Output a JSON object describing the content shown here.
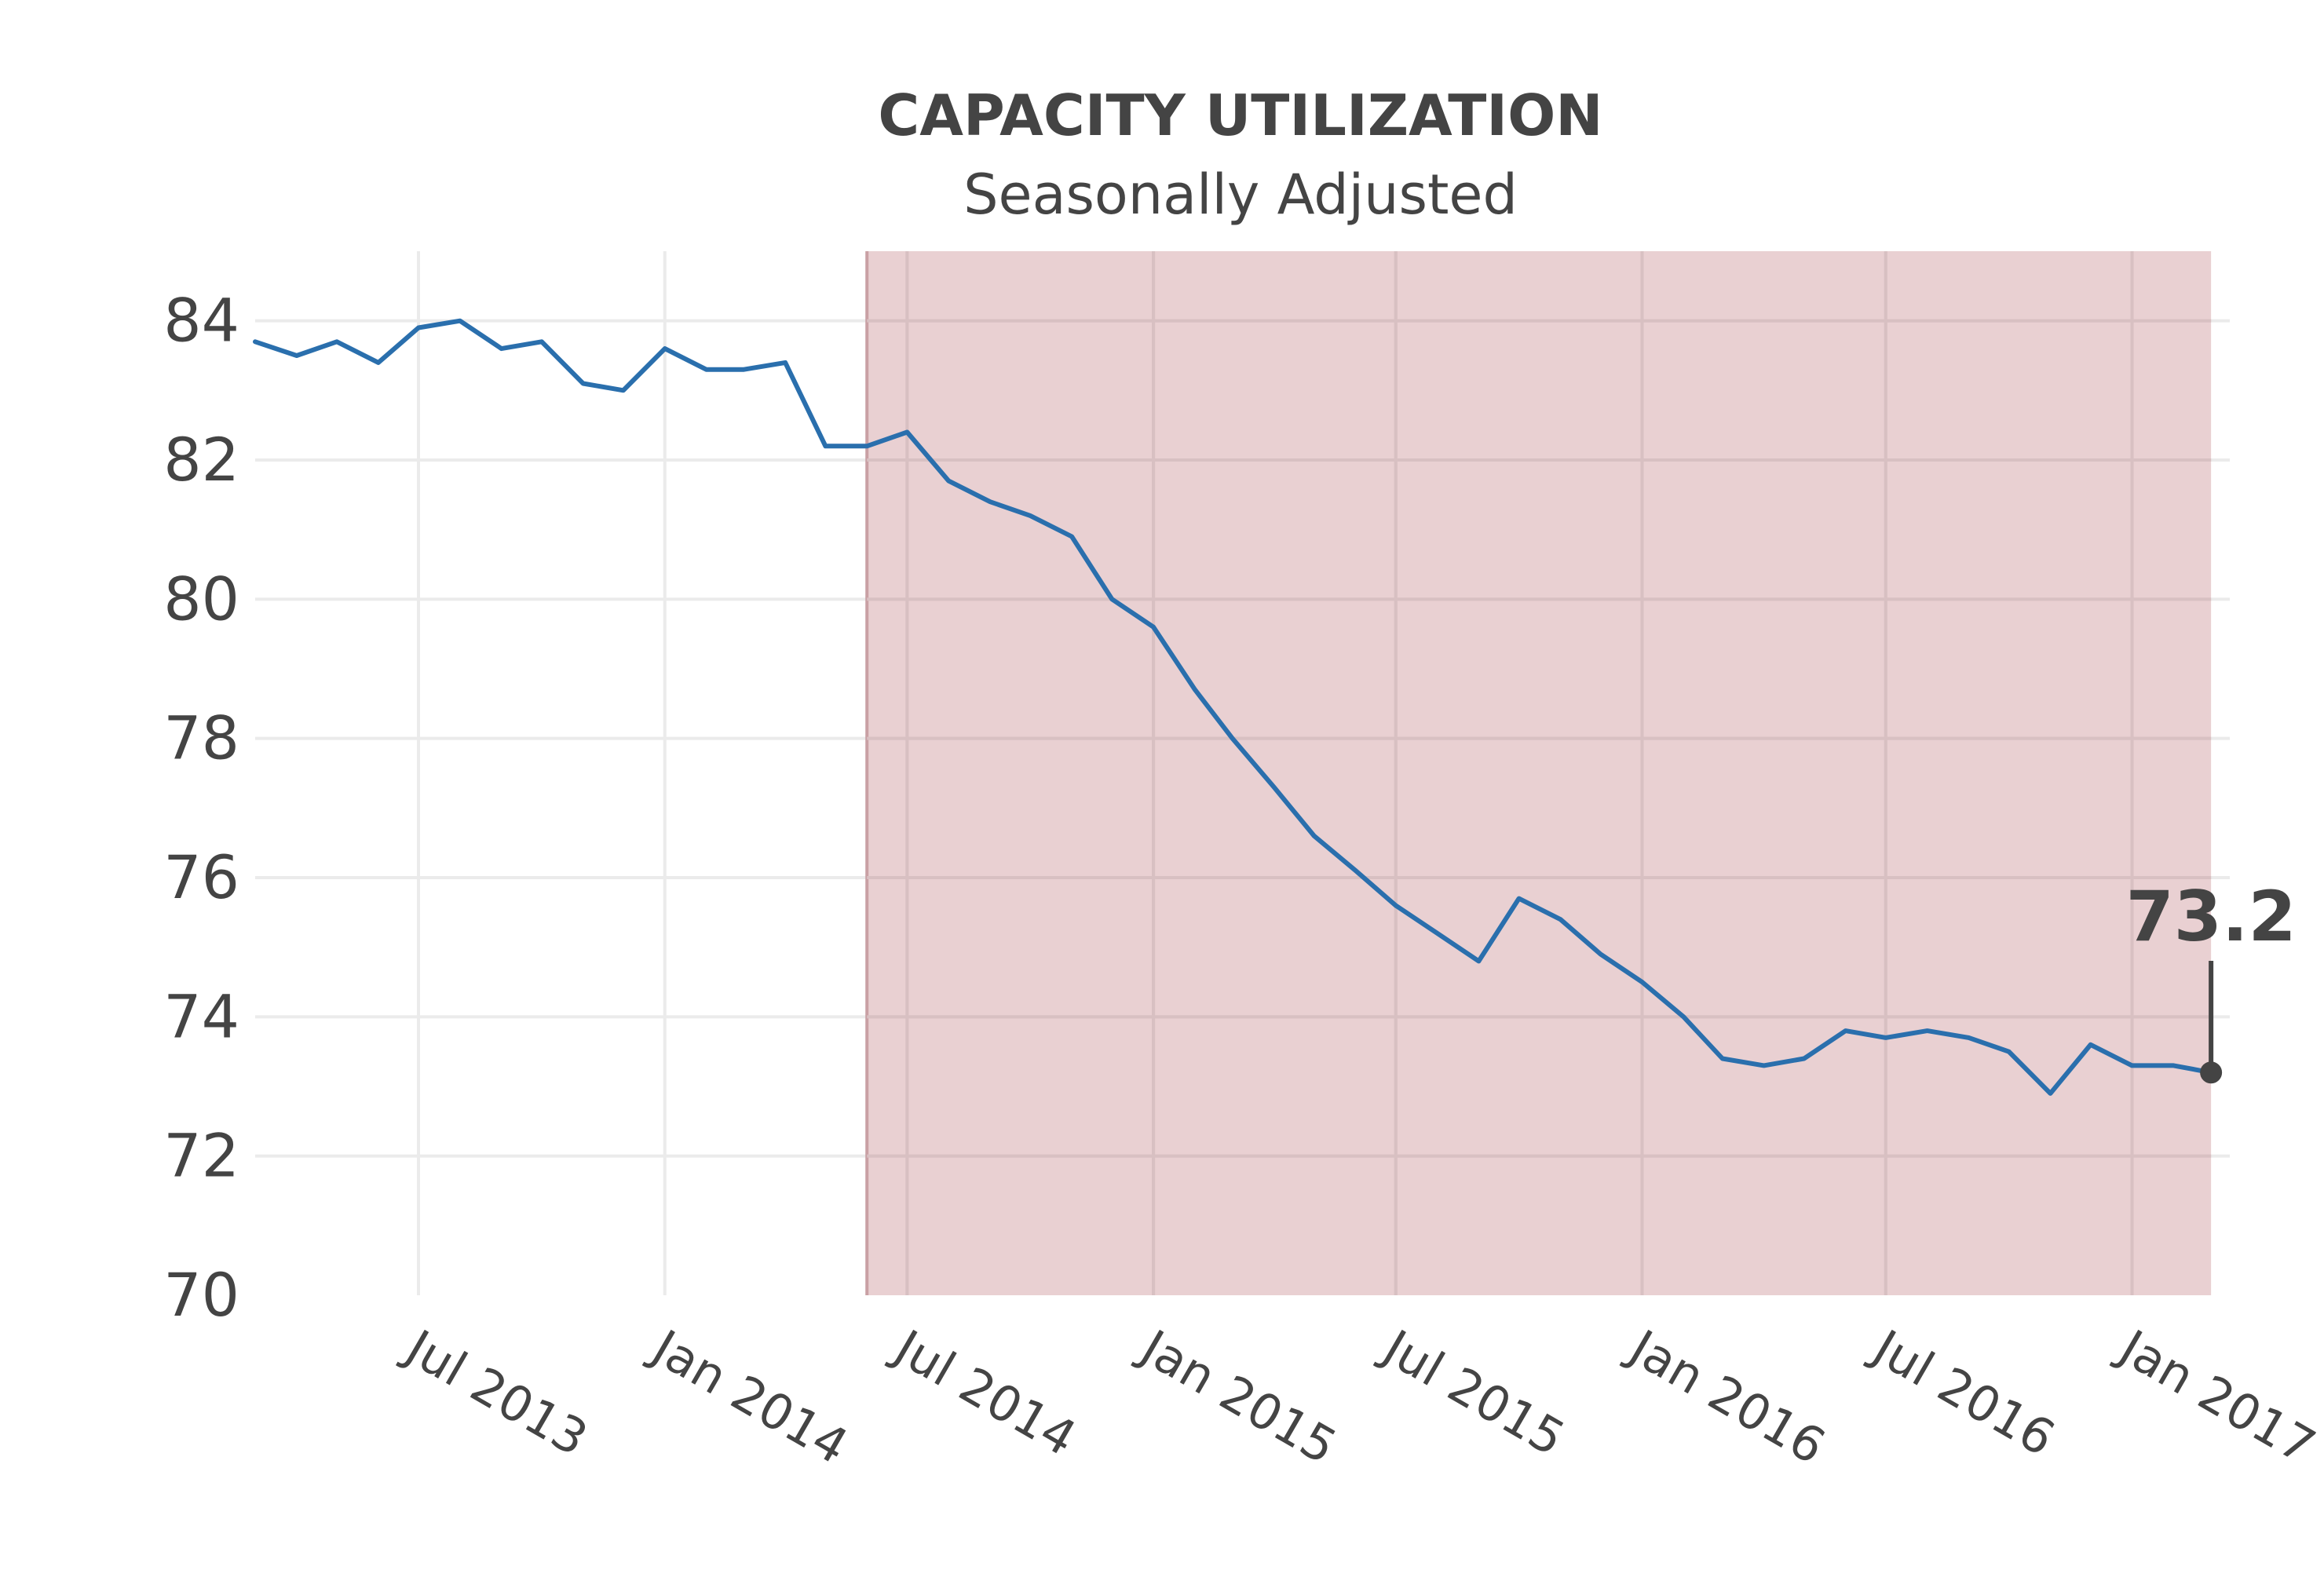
{
  "chart_data": {
    "type": "line",
    "title": "CAPACITY UTILIZATION",
    "subtitle": "Seasonally Adjusted",
    "xlabel": "",
    "ylabel": "",
    "ylim": [
      70,
      85
    ],
    "xlim": [
      "2013-03-01",
      "2017-03-15"
    ],
    "y_ticks": [
      70,
      72,
      74,
      76,
      78,
      80,
      82,
      84
    ],
    "x_ticks": [
      {
        "date": "2013-07-01",
        "label": "Jul 2013"
      },
      {
        "date": "2014-01-01",
        "label": "Jan 2014"
      },
      {
        "date": "2014-07-01",
        "label": "Jul 2014"
      },
      {
        "date": "2015-01-01",
        "label": "Jan 2015"
      },
      {
        "date": "2015-07-01",
        "label": "Jul 2015"
      },
      {
        "date": "2016-01-01",
        "label": "Jan 2016"
      },
      {
        "date": "2016-07-01",
        "label": "Jul 2016"
      },
      {
        "date": "2017-01-01",
        "label": "Jan 2017"
      }
    ],
    "grid": true,
    "legend": "none",
    "shaded_region": {
      "start": "2014-06-01",
      "end": "2017-03-01",
      "color": "#c98a8f"
    },
    "annotation": {
      "date": "2017-03-01",
      "value": 73.2,
      "label": "73.2"
    },
    "series": [
      {
        "color": "#2a6fad",
        "x": [
          "2013-03-01",
          "2013-04-01",
          "2013-05-01",
          "2013-06-01",
          "2013-07-01",
          "2013-08-01",
          "2013-09-01",
          "2013-10-01",
          "2013-11-01",
          "2013-12-01",
          "2014-01-01",
          "2014-02-01",
          "2014-03-01",
          "2014-04-01",
          "2014-05-01",
          "2014-06-01",
          "2014-07-01",
          "2014-08-01",
          "2014-09-01",
          "2014-10-01",
          "2014-11-01",
          "2014-12-01",
          "2015-01-01",
          "2015-02-01",
          "2015-03-01",
          "2015-04-01",
          "2015-05-01",
          "2015-06-01",
          "2015-07-01",
          "2015-08-01",
          "2015-09-01",
          "2015-10-01",
          "2015-11-01",
          "2015-12-01",
          "2016-01-01",
          "2016-02-01",
          "2016-03-01",
          "2016-04-01",
          "2016-05-01",
          "2016-06-01",
          "2016-07-01",
          "2016-08-01",
          "2016-09-01",
          "2016-10-01",
          "2016-11-01",
          "2016-12-01",
          "2017-01-01",
          "2017-02-01",
          "2017-03-01"
        ],
        "y": [
          83.7,
          83.5,
          83.7,
          83.4,
          83.9,
          84.0,
          83.6,
          83.7,
          83.1,
          83.0,
          83.6,
          83.3,
          83.3,
          83.4,
          82.2,
          82.2,
          82.4,
          81.7,
          81.4,
          81.2,
          80.9,
          80.0,
          79.6,
          78.7,
          78.0,
          77.3,
          76.6,
          76.1,
          75.6,
          75.2,
          74.8,
          75.7,
          75.4,
          74.9,
          74.5,
          74.0,
          73.4,
          73.3,
          73.4,
          73.8,
          73.7,
          73.8,
          73.7,
          73.5,
          72.9,
          73.6,
          73.3,
          73.3,
          73.2
        ]
      }
    ]
  }
}
